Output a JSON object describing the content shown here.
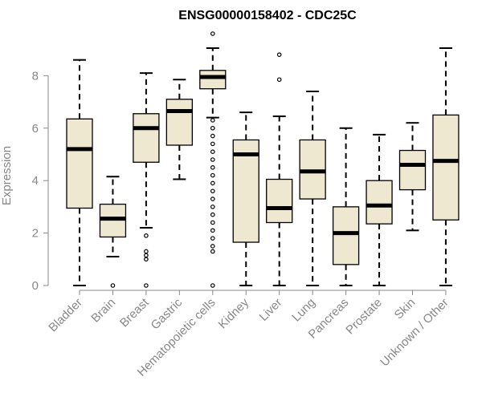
{
  "chart_data": {
    "type": "boxplot",
    "title": "ENSG00000158402 - CDC25C",
    "xlabel": "",
    "ylabel": "Expression",
    "ylim": [
      0,
      9.6
    ],
    "yticks": [
      0,
      2,
      4,
      6,
      8
    ],
    "box_color": "#EEE8D0",
    "categories": [
      "Bladder",
      "Brain",
      "Breast",
      "Gastric",
      "Hematopoietic cells",
      "Kidney",
      "Liver",
      "Lung",
      "Pancreas",
      "Prostate",
      "Skin",
      "Unknown / Other"
    ],
    "boxes": [
      {
        "name": "Bladder",
        "whisker_low": 0.0,
        "q1": 2.95,
        "median": 5.2,
        "q3": 6.35,
        "whisker_high": 8.6,
        "outliers": []
      },
      {
        "name": "Brain",
        "whisker_low": 1.1,
        "q1": 1.85,
        "median": 2.55,
        "q3": 3.1,
        "whisker_high": 4.15,
        "outliers": [
          0.0
        ]
      },
      {
        "name": "Breast",
        "whisker_low": 2.2,
        "q1": 4.7,
        "median": 6.0,
        "q3": 6.55,
        "whisker_high": 8.1,
        "outliers": [
          1.9,
          1.3,
          1.15,
          1.0,
          0.0
        ]
      },
      {
        "name": "Gastric",
        "whisker_low": 4.05,
        "q1": 5.35,
        "median": 6.65,
        "q3": 7.1,
        "whisker_high": 7.85,
        "outliers": []
      },
      {
        "name": "Hematopoietic cells",
        "whisker_low": 6.4,
        "q1": 7.5,
        "median": 7.95,
        "q3": 8.2,
        "whisker_high": 9.05,
        "outliers": [
          9.6,
          6.3,
          6.0,
          5.7,
          5.4,
          5.1,
          4.8,
          4.5,
          4.2,
          3.9,
          3.6,
          3.3,
          3.0,
          2.7,
          2.4,
          2.1,
          1.8,
          1.5,
          1.3,
          0.0
        ]
      },
      {
        "name": "Kidney",
        "whisker_low": 0.0,
        "q1": 1.65,
        "median": 5.0,
        "q3": 5.55,
        "whisker_high": 6.6,
        "outliers": []
      },
      {
        "name": "Liver",
        "whisker_low": 0.0,
        "q1": 2.4,
        "median": 2.95,
        "q3": 4.05,
        "whisker_high": 6.45,
        "outliers": [
          8.8,
          7.85
        ]
      },
      {
        "name": "Lung",
        "whisker_low": 0.0,
        "q1": 3.3,
        "median": 4.35,
        "q3": 5.55,
        "whisker_high": 7.4,
        "outliers": []
      },
      {
        "name": "Pancreas",
        "whisker_low": 0.0,
        "q1": 0.8,
        "median": 2.0,
        "q3": 3.0,
        "whisker_high": 6.0,
        "outliers": []
      },
      {
        "name": "Prostate",
        "whisker_low": 0.0,
        "q1": 2.35,
        "median": 3.05,
        "q3": 4.0,
        "whisker_high": 5.75,
        "outliers": []
      },
      {
        "name": "Skin",
        "whisker_low": 2.1,
        "q1": 3.65,
        "median": 4.6,
        "q3": 5.15,
        "whisker_high": 6.2,
        "outliers": []
      },
      {
        "name": "Unknown / Other",
        "whisker_low": 0.0,
        "q1": 2.5,
        "median": 4.75,
        "q3": 6.5,
        "whisker_high": 9.05,
        "outliers": []
      }
    ]
  }
}
